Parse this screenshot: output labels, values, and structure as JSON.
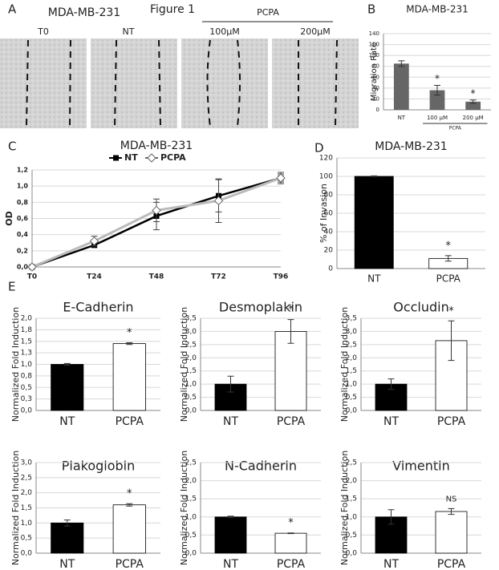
{
  "panel_labels": [
    "A",
    "B",
    "C",
    "D",
    "E"
  ],
  "figure_a": {
    "title": "MDA-MB-231",
    "figure": "Figure 1",
    "group": "PCPA",
    "images": [
      "T0",
      "NT",
      "100μM",
      "200μM"
    ]
  },
  "chart_data": [
    {
      "type": "bar",
      "title": "MDA-MB-231",
      "ylabel": "Migration Rate",
      "categories": [
        "NT",
        "100 μM",
        "200 μM"
      ],
      "values": [
        85,
        36,
        15
      ],
      "errors": [
        5,
        9,
        3
      ],
      "annotations": [
        null,
        "*",
        "*"
      ],
      "group_label": "PCPA",
      "color": "#666666",
      "ylim": [
        0,
        140
      ],
      "yticks": [
        0,
        20,
        40,
        60,
        80,
        100,
        120,
        140
      ],
      "grid": true
    },
    {
      "type": "line",
      "title": "MDA-MB-231",
      "ylabel": "OD",
      "categories": [
        "T0",
        "T24",
        "T48",
        "T72",
        "T96"
      ],
      "series": [
        {
          "name": "NT",
          "color": "#000000",
          "values": [
            0,
            0.27,
            0.63,
            0.88,
            1.1
          ],
          "errors": [
            0,
            0.03,
            0.17,
            0.2,
            0.05
          ]
        },
        {
          "name": "PCPA",
          "color": "#bbbbbb",
          "values": [
            0,
            0.32,
            0.7,
            0.82,
            1.1
          ],
          "errors": [
            0,
            0.06,
            0.14,
            0.27,
            0.07
          ]
        }
      ],
      "ylim": [
        0,
        1.2
      ],
      "yticks": [
        {
          "value": 0,
          "label": "0,0"
        },
        {
          "value": 0.2,
          "label": "0,2"
        },
        {
          "value": 0.4,
          "label": "0,4"
        },
        {
          "value": 0.6,
          "label": "0,6"
        },
        {
          "value": 0.8,
          "label": "0,8"
        },
        {
          "value": 1,
          "label": "1,0"
        },
        {
          "value": 1.2,
          "label": "1,2"
        }
      ],
      "grid": true
    },
    {
      "type": "bar",
      "title": "MDA-MB-231",
      "ylabel": "% of Invasion",
      "categories": [
        "NT",
        "PCPA"
      ],
      "values": [
        100,
        11
      ],
      "errors": [
        0.5,
        3
      ],
      "annotations": [
        null,
        "*"
      ],
      "colors": [
        "#000000",
        "#ffffff"
      ],
      "ylim": [
        0,
        120
      ],
      "yticks": [
        0,
        20,
        40,
        60,
        80,
        100,
        120
      ],
      "grid": true
    },
    {
      "type": "bar",
      "title": "E-Cadherin",
      "ylabel": "Normalized Fold Induction",
      "categories": [
        "NT",
        "PCPA"
      ],
      "values": [
        1,
        1.45
      ],
      "errors": [
        0.02,
        0.02
      ],
      "annotations": [
        null,
        "*"
      ],
      "colors": [
        "#000000",
        "#ffffff"
      ],
      "ylim": [
        0,
        2
      ],
      "yticks": [
        {
          "value": 0,
          "label": "0,0"
        },
        {
          "value": 0.25,
          "label": "0,3"
        },
        {
          "value": 0.5,
          "label": "0,5"
        },
        {
          "value": 0.75,
          "label": "0,8"
        },
        {
          "value": 1,
          "label": "1,0"
        },
        {
          "value": 1.25,
          "label": "1,3"
        },
        {
          "value": 1.5,
          "label": "1,5"
        },
        {
          "value": 1.75,
          "label": "1,8"
        },
        {
          "value": 2,
          "label": "2,0"
        }
      ],
      "grid": true
    },
    {
      "type": "bar",
      "title": "Desmoplakin",
      "ylabel": "Normalized Fold Induction",
      "categories": [
        "NT",
        "PCPA"
      ],
      "values": [
        1,
        3
      ],
      "errors": [
        0.3,
        0.45
      ],
      "annotations": [
        null,
        "*"
      ],
      "colors": [
        "#000000",
        "#ffffff"
      ],
      "ylim": [
        0,
        3.5
      ],
      "yticks": [
        {
          "value": 0,
          "label": "0,0"
        },
        {
          "value": 0.5,
          "label": "0,5"
        },
        {
          "value": 1,
          "label": "1,0"
        },
        {
          "value": 1.5,
          "label": "1,5"
        },
        {
          "value": 2,
          "label": "2,0"
        },
        {
          "value": 2.5,
          "label": "2,5"
        },
        {
          "value": 3,
          "label": "3,0"
        },
        {
          "value": 3.5,
          "label": "3,5"
        }
      ],
      "grid": true
    },
    {
      "type": "bar",
      "title": "Occludin",
      "ylabel": "Normalized Fold Induction",
      "categories": [
        "NT",
        "PCPA"
      ],
      "values": [
        1,
        2.65
      ],
      "errors": [
        0.2,
        0.75
      ],
      "annotations": [
        null,
        "*"
      ],
      "colors": [
        "#000000",
        "#ffffff"
      ],
      "ylim": [
        0,
        3.5
      ],
      "yticks": [
        {
          "value": 0,
          "label": "0,0"
        },
        {
          "value": 0.5,
          "label": "0,5"
        },
        {
          "value": 1,
          "label": "1,0"
        },
        {
          "value": 1.5,
          "label": "1,5"
        },
        {
          "value": 2,
          "label": "2,0"
        },
        {
          "value": 2.5,
          "label": "2,5"
        },
        {
          "value": 3,
          "label": "3,0"
        },
        {
          "value": 3.5,
          "label": "3,5"
        }
      ],
      "grid": true
    },
    {
      "type": "bar",
      "title": "Plakoglobin",
      "ylabel": "Normalized Fold Induction",
      "categories": [
        "NT",
        "PCPA"
      ],
      "values": [
        1,
        1.6
      ],
      "errors": [
        0.1,
        0.04
      ],
      "annotations": [
        null,
        "*"
      ],
      "colors": [
        "#000000",
        "#ffffff"
      ],
      "ylim": [
        0,
        3
      ],
      "yticks": [
        {
          "value": 0,
          "label": "0,0"
        },
        {
          "value": 0.5,
          "label": "0,5"
        },
        {
          "value": 1,
          "label": "1,0"
        },
        {
          "value": 1.5,
          "label": "1,5"
        },
        {
          "value": 2,
          "label": "2,0"
        },
        {
          "value": 2.5,
          "label": "2,5"
        },
        {
          "value": 3,
          "label": "3,0"
        }
      ],
      "grid": true
    },
    {
      "type": "bar",
      "title": "N-Cadherin",
      "ylabel": "Normalized Fold Induction",
      "categories": [
        "NT",
        "PCPA"
      ],
      "values": [
        1,
        0.55
      ],
      "errors": [
        0.02,
        0.01
      ],
      "annotations": [
        null,
        "*"
      ],
      "colors": [
        "#000000",
        "#ffffff"
      ],
      "ylim": [
        0,
        2.5
      ],
      "yticks": [
        {
          "value": 0,
          "label": "0,0"
        },
        {
          "value": 0.5,
          "label": "0,5"
        },
        {
          "value": 1,
          "label": "1,0"
        },
        {
          "value": 1.5,
          "label": "1,5"
        },
        {
          "value": 2,
          "label": "2,0"
        },
        {
          "value": 2.5,
          "label": "2,5"
        }
      ],
      "grid": true
    },
    {
      "type": "bar",
      "title": "Vimentin",
      "ylabel": "Normalized Fold Induction",
      "categories": [
        "NT",
        "PCPA"
      ],
      "values": [
        1,
        1.15
      ],
      "errors": [
        0.2,
        0.08
      ],
      "annotations": [
        null,
        "NS"
      ],
      "colors": [
        "#000000",
        "#ffffff"
      ],
      "ylim": [
        0,
        2.5
      ],
      "yticks": [
        {
          "value": 0,
          "label": "0,0"
        },
        {
          "value": 0.5,
          "label": "0,5"
        },
        {
          "value": 1,
          "label": "1,0"
        },
        {
          "value": 1.5,
          "label": "1,5"
        },
        {
          "value": 2,
          "label": "2,0"
        },
        {
          "value": 2.5,
          "label": "2,5"
        }
      ],
      "grid": true
    }
  ]
}
